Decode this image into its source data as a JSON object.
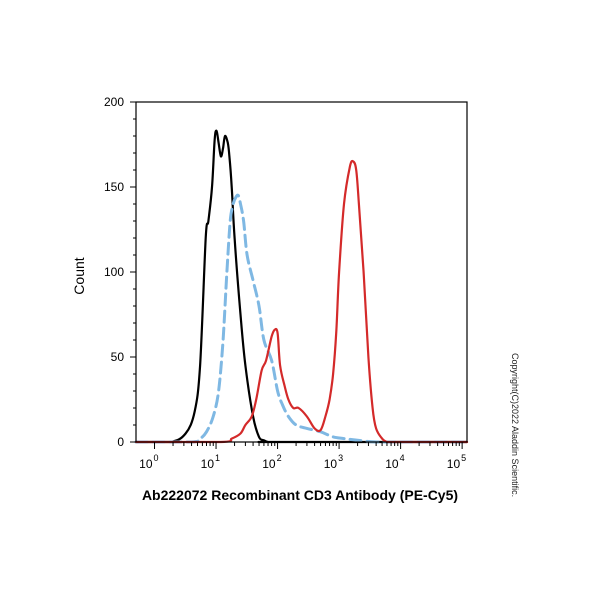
{
  "chart_data": {
    "type": "line",
    "title": "",
    "xlabel": "Ab222072 Recombinant CD3 Antibody (PE-Cy5)",
    "ylabel": "Count",
    "xscale": "log",
    "xlim": [
      0.5,
      120000
    ],
    "ylim": [
      0,
      200
    ],
    "xticks": [
      {
        "value": 1,
        "base": "10",
        "exp": "0"
      },
      {
        "value": 10,
        "base": "10",
        "exp": "1"
      },
      {
        "value": 100,
        "base": "10",
        "exp": "2"
      },
      {
        "value": 1000,
        "base": "10",
        "exp": "3"
      },
      {
        "value": 10000,
        "base": "10",
        "exp": "4"
      },
      {
        "value": 100000,
        "base": "10",
        "exp": "5"
      }
    ],
    "yticks": [
      "0",
      "50",
      "100",
      "150",
      "200"
    ],
    "grid": false,
    "legend": "none",
    "series": [
      {
        "color": "#000000",
        "style": "solid",
        "x": [
          0.5,
          1.8,
          3.2,
          4.5,
          5.5,
          6.8,
          7.5,
          8.6,
          9.5,
          10.2,
          11,
          12,
          13,
          14,
          15.5,
          16.5,
          18,
          20,
          25,
          30,
          40,
          50,
          60,
          70,
          90,
          120000
        ],
        "y": [
          0,
          0,
          5,
          18,
          45,
          120,
          130,
          150,
          178,
          183,
          176,
          168,
          173,
          180,
          176,
          168,
          150,
          120,
          75,
          45,
          15,
          3,
          1,
          0,
          0,
          0
        ]
      },
      {
        "color": "#7fb8e3",
        "style": "dashed",
        "x": [
          0.5,
          4,
          5.5,
          7,
          9,
          11,
          13,
          15,
          17,
          19,
          21,
          23,
          25,
          28,
          32,
          40,
          50,
          60,
          80,
          100,
          120,
          150,
          200,
          300,
          500,
          800,
          1200,
          2000,
          4000,
          10000,
          120000
        ],
        "y": [
          0,
          0,
          2,
          6,
          15,
          30,
          60,
          100,
          130,
          140,
          144,
          145,
          140,
          130,
          110,
          95,
          80,
          60,
          48,
          30,
          22,
          15,
          10,
          8,
          6,
          3,
          2,
          1,
          0,
          0,
          0
        ]
      },
      {
        "color": "#d42a2a",
        "style": "solid",
        "x": [
          0.5,
          12,
          18,
          25,
          30,
          38,
          45,
          55,
          65,
          80,
          90,
          100,
          110,
          130,
          150,
          180,
          220,
          300,
          400,
          500,
          600,
          700,
          800,
          900,
          1000,
          1200,
          1500,
          1700,
          1900,
          2100,
          2500,
          3000,
          3500,
          4000,
          5000,
          6000,
          8000,
          120000
        ],
        "y": [
          0,
          0,
          2,
          5,
          10,
          15,
          25,
          42,
          48,
          62,
          66,
          64,
          45,
          33,
          25,
          20,
          20,
          15,
          8,
          7,
          15,
          25,
          40,
          65,
          100,
          140,
          162,
          165,
          160,
          140,
          100,
          50,
          20,
          8,
          2,
          0,
          0,
          0
        ]
      }
    ]
  },
  "copyright_text": "Copyright(C)2022 Aladdin Scientific."
}
